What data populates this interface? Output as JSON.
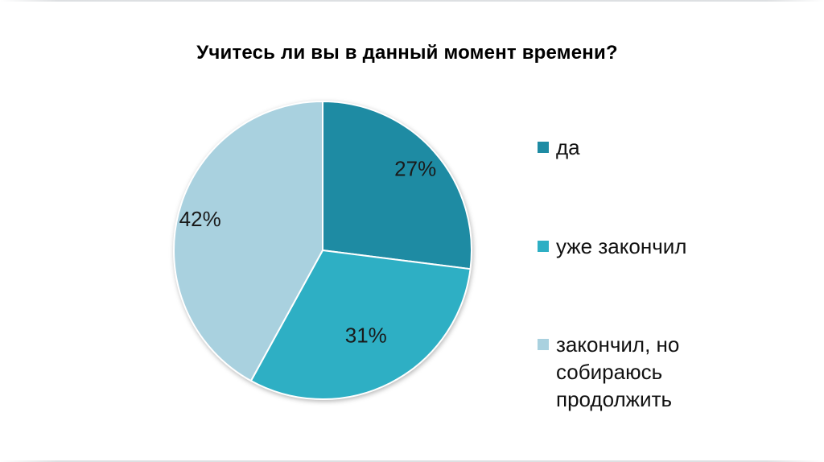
{
  "title": "Учитесь ли вы в данный момент времени?",
  "chart_data": {
    "type": "pie",
    "title": "Учитесь ли вы в данный момент времени?",
    "categories": [
      "да",
      "уже закончил",
      "закончил, но собираюсь продолжить"
    ],
    "values": [
      27,
      31,
      42
    ],
    "unit": "%",
    "data_labels": [
      "27%",
      "31%",
      "42%"
    ],
    "colors": [
      "#1e8ba3",
      "#2eafc4",
      "#a9d1df"
    ],
    "label_color": "#1a1a1a",
    "slice_border_color": "#ffffff",
    "start_angle_deg": 0,
    "direction": "clockwise",
    "legend_position": "right",
    "background": "#ffffff"
  },
  "legend": {
    "items": [
      {
        "label": "да",
        "color": "#1e8ba3"
      },
      {
        "label": "уже закончил",
        "color": "#2eafc4"
      },
      {
        "label": "закончил, но собираюсь продолжить",
        "color": "#a9d1df"
      }
    ]
  }
}
